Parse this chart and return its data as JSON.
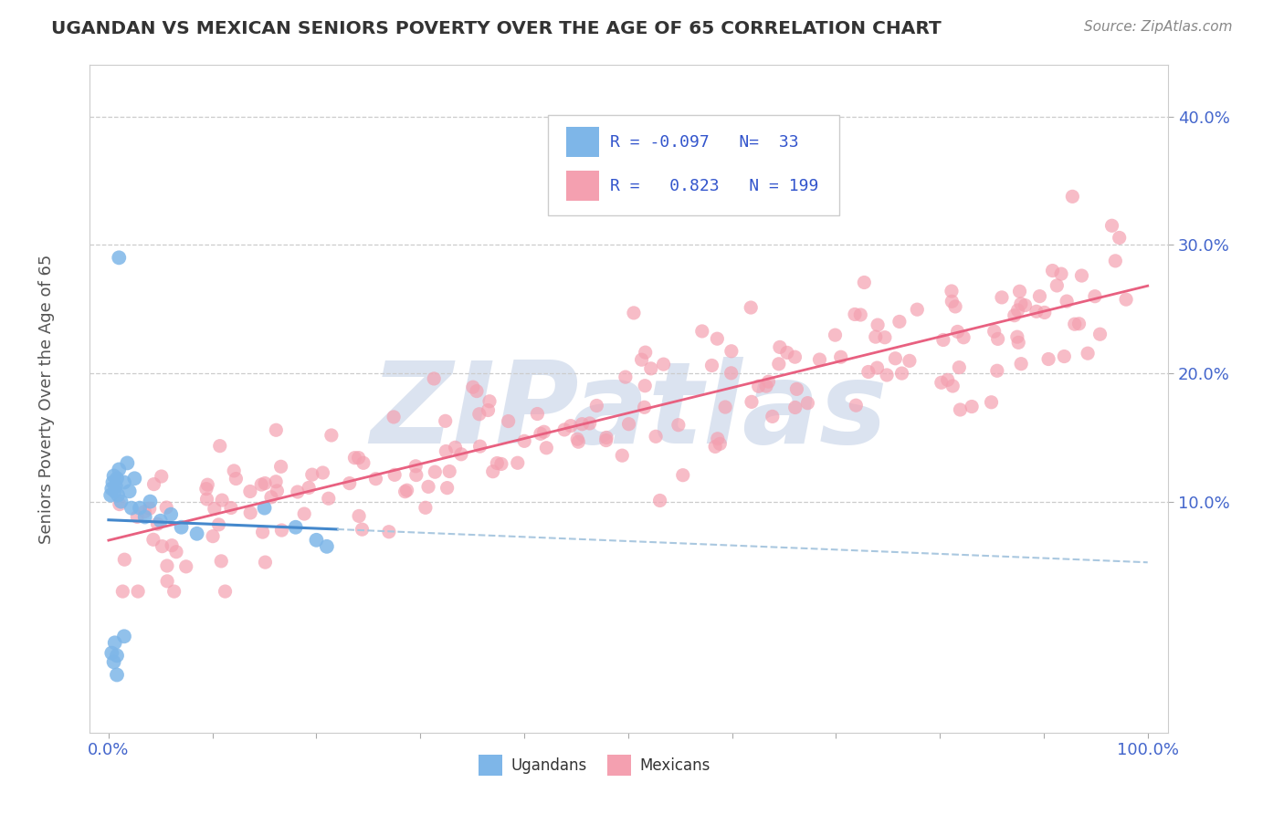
{
  "title": "UGANDAN VS MEXICAN SENIORS POVERTY OVER THE AGE OF 65 CORRELATION CHART",
  "source": "Source: ZipAtlas.com",
  "ylabel": "Seniors Poverty Over the Age of 65",
  "ugandan_color": "#7eb6e8",
  "mexican_color": "#f4a0b0",
  "ugandan_R": -0.097,
  "ugandan_N": 33,
  "mexican_R": 0.823,
  "mexican_N": 199,
  "background_color": "#ffffff",
  "grid_color": "#cccccc",
  "watermark": "ZIPatlas",
  "watermark_color": "#cdd8ea",
  "legend_R_color": "#3355cc",
  "title_color": "#333333",
  "axis_label_color": "#555555",
  "tick_color": "#4466cc",
  "ugandan_line_color": "#4488cc",
  "mexican_line_color": "#e86080"
}
